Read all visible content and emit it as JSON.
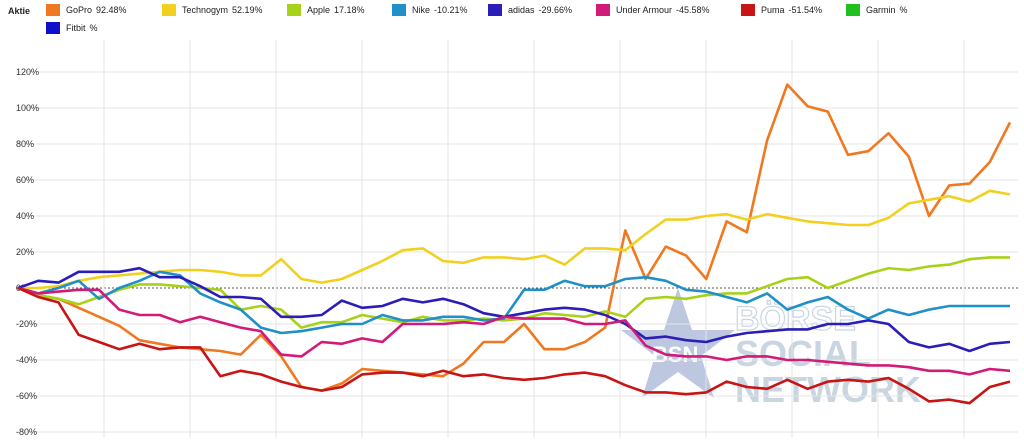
{
  "chart_data": {
    "type": "line",
    "legend_title": "Aktie",
    "legend_placement": "top",
    "grid": true,
    "ylim": [
      -80,
      120
    ],
    "y_ticks": [
      120,
      100,
      80,
      60,
      40,
      20,
      0,
      -20,
      -40,
      -60,
      -80
    ],
    "y_tick_labels": [
      "120%",
      "100%",
      "80%",
      "60%",
      "40%",
      "20%",
      "0%",
      "-20%",
      "-40%",
      "-60%",
      "-80%"
    ],
    "x_count": 60,
    "series": [
      {
        "name": "GoPro",
        "value_label": "92.48%",
        "color": "#f07820",
        "values": [
          0,
          -4,
          -6,
          -11,
          -16,
          -21,
          -29,
          -31,
          -33,
          -34,
          -35,
          -37,
          -26,
          -38,
          -55,
          -57,
          -53,
          -45,
          -46,
          -47,
          -48,
          -49,
          -42,
          -30,
          -30,
          -20,
          -34,
          -34,
          -30,
          -22,
          32,
          5,
          23,
          18,
          5,
          37,
          31,
          82,
          113,
          101,
          98,
          74,
          76,
          86,
          73,
          40,
          57,
          58,
          70,
          92
        ]
      },
      {
        "name": "Technogym",
        "value_label": "52.19%",
        "color": "#f2d020",
        "values": [
          0,
          0,
          1,
          4,
          6,
          7,
          8,
          9,
          10,
          10,
          9,
          7,
          7,
          16,
          5,
          3,
          5,
          10,
          15,
          21,
          22,
          15,
          14,
          17,
          17,
          16,
          18,
          13,
          22,
          22,
          21,
          30,
          38,
          38,
          40,
          41,
          38,
          41,
          39,
          37,
          36,
          35,
          35,
          39,
          47,
          49,
          51,
          48,
          54,
          52
        ]
      },
      {
        "name": "Apple",
        "value_label": "17.18%",
        "color": "#a8d21a",
        "values": [
          0,
          -4,
          -6,
          -9,
          -5,
          -1,
          2,
          2,
          1,
          0,
          -1,
          -12,
          -10,
          -12,
          -22,
          -19,
          -19,
          -15,
          -17,
          -19,
          -16,
          -18,
          -18,
          -17,
          -18,
          -17,
          -14,
          -15,
          -16,
          -13,
          -16,
          -6,
          -5,
          -6,
          -4,
          -3,
          -3,
          1,
          5,
          6,
          0,
          4,
          8,
          11,
          10,
          12,
          13,
          16,
          17,
          17
        ]
      },
      {
        "name": "Nike",
        "value_label": "-10.21%",
        "color": "#2090c8",
        "values": [
          0,
          -3,
          0,
          4,
          -6,
          0,
          4,
          9,
          7,
          -3,
          -8,
          -12,
          -22,
          -25,
          -24,
          -22,
          -20,
          -20,
          -15,
          -18,
          -18,
          -16,
          -16,
          -18,
          -17,
          -1,
          -1,
          4,
          1,
          1,
          5,
          6,
          4,
          -1,
          -2,
          -5,
          -8,
          -3,
          -12,
          -8,
          -5,
          -12,
          -17,
          -12,
          -15,
          -12,
          -10,
          -10,
          -10,
          -10
        ]
      },
      {
        "name": "adidas",
        "value_label": "-29.66%",
        "color": "#2a1db8",
        "values": [
          0,
          4,
          3,
          9,
          9,
          9,
          11,
          6,
          6,
          1,
          -5,
          -5,
          -6,
          -16,
          -16,
          -15,
          -7,
          -11,
          -10,
          -6,
          -8,
          -6,
          -9,
          -14,
          -16,
          -14,
          -12,
          -11,
          -12,
          -15,
          -20,
          -28,
          -27,
          -29,
          -30,
          -27,
          -25,
          -24,
          -23,
          -23,
          -20,
          -20,
          -18,
          -20,
          -30,
          -33,
          -31,
          -35,
          -31,
          -30
        ]
      },
      {
        "name": "Under Armour",
        "value_label": "-45.58%",
        "color": "#d21a78",
        "values": [
          0,
          -3,
          -2,
          -1,
          -1,
          -12,
          -15,
          -15,
          -19,
          -16,
          -19,
          -22,
          -24,
          -37,
          -38,
          -30,
          -31,
          -28,
          -30,
          -20,
          -20,
          -20,
          -19,
          -20,
          -16,
          -17,
          -17,
          -17,
          -20,
          -20,
          -18,
          -32,
          -37,
          -38,
          -38,
          -40,
          -38,
          -38,
          -40,
          -40,
          -41,
          -42,
          -43,
          -43,
          -44,
          -46,
          -46,
          -48,
          -45,
          -46
        ]
      },
      {
        "name": "Puma",
        "value_label": "-51.54%",
        "color": "#c81414",
        "values": [
          0,
          -5,
          -8,
          -26,
          -30,
          -34,
          -31,
          -34,
          -33,
          -33,
          -49,
          -46,
          -48,
          -52,
          -55,
          -57,
          -55,
          -48,
          -47,
          -47,
          -49,
          -46,
          -49,
          -48,
          -50,
          -51,
          -50,
          -48,
          -47,
          -49,
          -54,
          -58,
          -58,
          -59,
          -58,
          -52,
          -55,
          -56,
          -51,
          -56,
          -52,
          -51,
          -52,
          -50,
          -56,
          -63,
          -62,
          -64,
          -55,
          -52
        ]
      },
      {
        "name": "Garmin",
        "value_label": "%",
        "color": "#20c020",
        "values": []
      },
      {
        "name": "Fitbit",
        "value_label": "%",
        "color": "#1010c8",
        "values": []
      }
    ]
  },
  "watermark": {
    "badge_text": "BSN",
    "line1": "BÖRSE",
    "line2": "SOCIAL",
    "line3": "NETWORK",
    "star_color": "#8a9ac8",
    "text_color": "#a0b4cc"
  }
}
